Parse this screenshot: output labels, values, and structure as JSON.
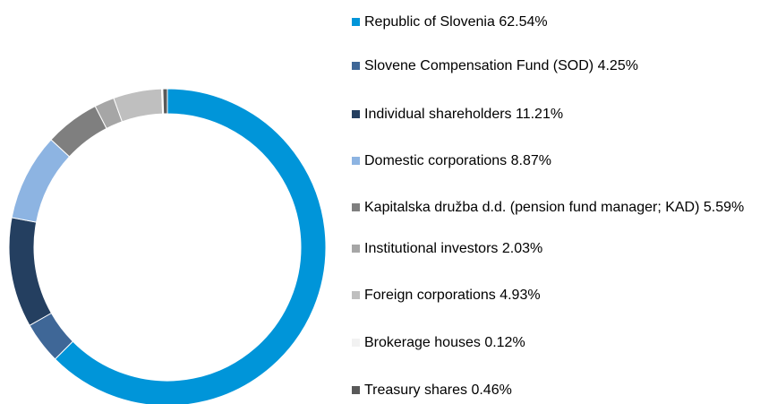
{
  "chart_data": {
    "type": "donut",
    "categories": [
      "Republic of Slovenia",
      "Slovene Compensation Fund (SOD)",
      "Individual shareholders",
      "Domestic corporations",
      "Kapitalska družba d.d. (pension fund manager; KAD)",
      "Institutional investors",
      "Foreign corporations",
      "Brokerage houses",
      "Treasury shares"
    ],
    "values": [
      62.54,
      4.25,
      11.21,
      8.87,
      5.59,
      2.03,
      4.93,
      0.12,
      0.46
    ],
    "value_labels": [
      "62.54%",
      "4.25%",
      "11.21%",
      "8.87%",
      "5.59%",
      "2.03%",
      "4.93%",
      "0.12%",
      "0.46%"
    ],
    "colors": [
      "#0095d9",
      "#3f6797",
      "#243f60",
      "#8db4e2",
      "#7f7f7f",
      "#a6a6a6",
      "#bfbfbf",
      "#f2f2f2",
      "#595959"
    ],
    "legend": "right"
  }
}
